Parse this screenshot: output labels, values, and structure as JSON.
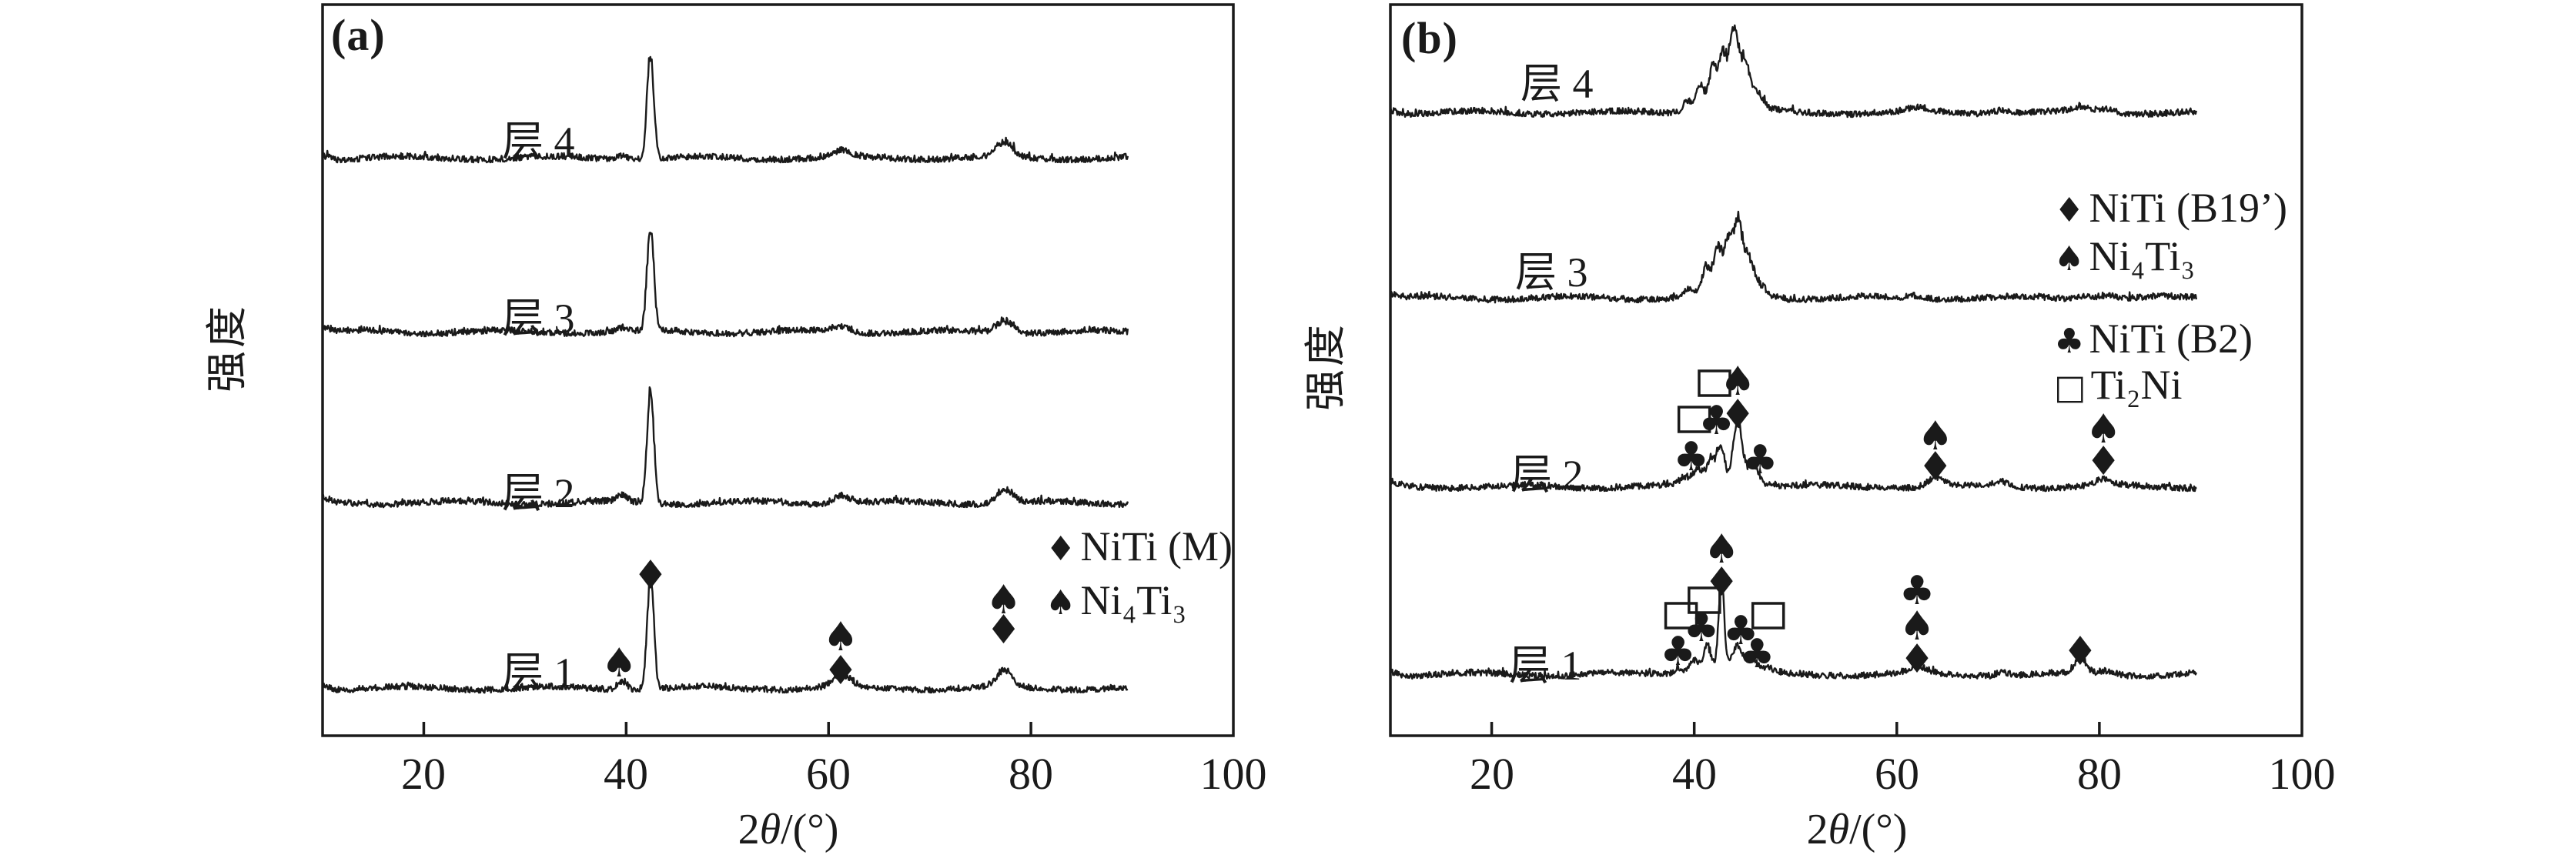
{
  "figure": {
    "background": "#ffffff",
    "ink_color": "#1a1a1a",
    "description_visible_text_only": true
  },
  "chart_data": [
    {
      "type": "line",
      "panel_label": "(a)",
      "x_axis": {
        "label_prefix": "2",
        "label_theta": "θ",
        "label_suffix": "/(°)",
        "ticks": [
          20,
          40,
          60,
          80,
          100
        ],
        "range": [
          10,
          100
        ]
      },
      "y_axis": {
        "label": "强度"
      },
      "legend": {
        "rows": [
          {
            "symbol": "♦",
            "symbol_name": "diamond-marker",
            "label": "NiTi (M)"
          },
          {
            "symbol": "♠",
            "symbol_name": "spade-marker",
            "label": "Ni₄Ti₃"
          }
        ]
      },
      "peaks_format": [
        "two_theta_deg",
        "height_px",
        "sigma_deg"
      ],
      "series": [
        {
          "label": "层 4",
          "baseline_y": 212,
          "peaks": [
            [
              39.6,
              5,
              0.5
            ],
            [
              42.4,
              128,
              0.33
            ],
            [
              61.3,
              8,
              0.9
            ],
            [
              77.4,
              18,
              0.8
            ]
          ],
          "markers": []
        },
        {
          "label": "层 3",
          "baseline_y": 438,
          "peaks": [
            [
              39.6,
              5,
              0.5
            ],
            [
              42.4,
              128,
              0.33
            ],
            [
              61.3,
              8,
              0.9
            ],
            [
              77.4,
              15,
              0.8
            ]
          ],
          "markers": []
        },
        {
          "label": "层 2",
          "baseline_y": 660,
          "peaks": [
            [
              39.6,
              9,
              0.5
            ],
            [
              42.4,
              142,
              0.33
            ],
            [
              61.3,
              10,
              0.9
            ],
            [
              77.4,
              17,
              0.8
            ]
          ],
          "markers": []
        },
        {
          "label": "层 1",
          "baseline_y": 901,
          "peaks": [
            [
              39.6,
              11,
              0.5
            ],
            [
              42.4,
              138,
              0.33
            ],
            [
              61.3,
              14,
              0.9
            ],
            [
              77.4,
              20,
              0.8
            ]
          ],
          "markers": [
            {
              "symbol": "spade",
              "two_theta": 39.3,
              "y": 860
            },
            {
              "symbol": "diamond",
              "two_theta": 42.4,
              "y": 746
            },
            {
              "symbol": "spade",
              "two_theta": 61.2,
              "y": 826
            },
            {
              "symbol": "diamond",
              "two_theta": 61.2,
              "y": 870
            },
            {
              "symbol": "spade",
              "two_theta": 77.3,
              "y": 778
            },
            {
              "symbol": "diamond",
              "two_theta": 77.3,
              "y": 817
            }
          ]
        }
      ]
    },
    {
      "type": "line",
      "panel_label": "(b)",
      "x_axis": {
        "label_prefix": "2",
        "label_theta": "θ",
        "label_suffix": "/(°)",
        "ticks": [
          20,
          40,
          60,
          80,
          100
        ],
        "range": [
          10,
          100
        ]
      },
      "y_axis": {
        "label": "强度"
      },
      "legend": {
        "rows": [
          {
            "symbol": "♦",
            "symbol_name": "diamond-marker",
            "label": "NiTi (B19’)"
          },
          {
            "symbol": "♠",
            "symbol_name": "spade-marker",
            "label": "Ni₄Ti₃"
          },
          {
            "symbol": "♣",
            "symbol_name": "club-marker",
            "label": "NiTi (B2)"
          },
          {
            "symbol": "□",
            "symbol_name": "square-marker",
            "label": "Ti₂Ni"
          }
        ]
      },
      "peaks_format": [
        "two_theta_deg",
        "height_px",
        "sigma_deg"
      ],
      "series": [
        {
          "label": "层 4",
          "baseline_y": 153,
          "peaks": [
            [
              43.5,
              10,
              2.5
            ],
            [
              39.3,
              14,
              0.45
            ],
            [
              40.6,
              28,
              0.4
            ],
            [
              41.8,
              48,
              0.38
            ],
            [
              42.8,
              56,
              0.4
            ],
            [
              43.9,
              88,
              0.45
            ],
            [
              45.0,
              50,
              0.5
            ],
            [
              46.3,
              15,
              0.55
            ],
            [
              62.1,
              5,
              0.9
            ],
            [
              70.4,
              5,
              0.9
            ],
            [
              78.3,
              6,
              0.9
            ],
            [
              80.8,
              5,
              0.8
            ]
          ],
          "markers": []
        },
        {
          "label": "层 3",
          "baseline_y": 394,
          "peaks": [
            [
              43.5,
              9,
              2.5
            ],
            [
              39.5,
              9,
              0.45
            ],
            [
              41.2,
              30,
              0.4
            ],
            [
              42.3,
              50,
              0.38
            ],
            [
              43.3,
              56,
              0.4
            ],
            [
              44.3,
              80,
              0.45
            ],
            [
              45.4,
              36,
              0.5
            ],
            [
              46.6,
              10,
              0.55
            ],
            [
              62.0,
              4,
              0.9
            ],
            [
              78.5,
              5,
              0.9
            ],
            [
              80.8,
              5,
              0.8
            ]
          ],
          "markers": []
        },
        {
          "label": "层 2",
          "baseline_y": 639,
          "peaks": [
            [
              43.5,
              8,
              2.5
            ],
            [
              39.0,
              8,
              0.45
            ],
            [
              40.3,
              17,
              0.45
            ],
            [
              41.6,
              27,
              0.4
            ],
            [
              42.6,
              42,
              0.38
            ],
            [
              44.3,
              74,
              0.45
            ],
            [
              45.8,
              22,
              0.55
            ],
            [
              63.8,
              10,
              0.8
            ],
            [
              70.4,
              6,
              0.9
            ],
            [
              80.4,
              8,
              0.8
            ]
          ],
          "markers": [
            {
              "symbol": "club",
              "two_theta": 39.7,
              "y": 592
            },
            {
              "symbol": "square",
              "two_theta": 40.0,
              "y": 545
            },
            {
              "symbol": "club",
              "two_theta": 42.2,
              "y": 545
            },
            {
              "symbol": "square",
              "two_theta": 42.0,
              "y": 498
            },
            {
              "symbol": "spade",
              "two_theta": 44.3,
              "y": 494
            },
            {
              "symbol": "diamond",
              "two_theta": 44.3,
              "y": 537
            },
            {
              "symbol": "club",
              "two_theta": 46.5,
              "y": 596
            },
            {
              "symbol": "spade",
              "two_theta": 63.8,
              "y": 565
            },
            {
              "symbol": "diamond",
              "two_theta": 63.8,
              "y": 605
            },
            {
              "symbol": "spade",
              "two_theta": 80.4,
              "y": 556
            },
            {
              "symbol": "diamond",
              "two_theta": 80.4,
              "y": 598
            }
          ]
        },
        {
          "label": "层 1",
          "baseline_y": 883,
          "peaks": [
            [
              42.5,
              8,
              2.5
            ],
            [
              38.4,
              7,
              0.45
            ],
            [
              40.0,
              14,
              0.45
            ],
            [
              41.3,
              28,
              0.38
            ],
            [
              42.7,
              100,
              0.28
            ],
            [
              44.2,
              28,
              0.45
            ],
            [
              45.6,
              14,
              0.55
            ],
            [
              47.2,
              5,
              0.6
            ],
            [
              62.0,
              9,
              0.8
            ],
            [
              70.4,
              6,
              0.5
            ],
            [
              78.1,
              20,
              0.55
            ],
            [
              80.8,
              5,
              0.8
            ]
          ],
          "markers": [
            {
              "symbol": "club",
              "two_theta": 38.4,
              "y": 845
            },
            {
              "symbol": "square",
              "two_theta": 38.7,
              "y": 800
            },
            {
              "symbol": "club",
              "two_theta": 40.7,
              "y": 814
            },
            {
              "symbol": "square",
              "two_theta": 41.0,
              "y": 780
            },
            {
              "symbol": "spade",
              "two_theta": 42.7,
              "y": 712
            },
            {
              "symbol": "diamond",
              "two_theta": 42.7,
              "y": 755
            },
            {
              "symbol": "club",
              "two_theta": 44.6,
              "y": 818
            },
            {
              "symbol": "club",
              "two_theta": 46.2,
              "y": 848
            },
            {
              "symbol": "square",
              "two_theta": 47.3,
              "y": 800
            },
            {
              "symbol": "club",
              "two_theta": 62.0,
              "y": 766
            },
            {
              "symbol": "spade",
              "two_theta": 62.0,
              "y": 812
            },
            {
              "symbol": "diamond",
              "two_theta": 62.0,
              "y": 855
            },
            {
              "symbol": "diamond",
              "two_theta": 78.1,
              "y": 845
            }
          ]
        }
      ]
    }
  ]
}
